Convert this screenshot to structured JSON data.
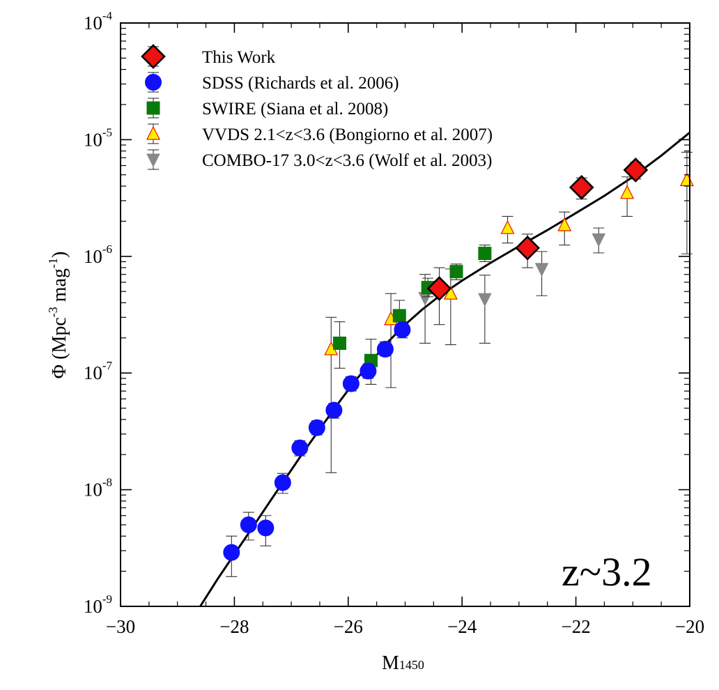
{
  "chart_data": {
    "type": "scatter",
    "xlabel": "M",
    "xlabel_sub": "1450",
    "ylabel": "Φ (Mpc",
    "ylabel_sup1": "-3",
    "ylabel_mid": " mag",
    "ylabel_sup2": "-1",
    "ylabel_end": ")",
    "xlim": [
      -30,
      -20
    ],
    "ylim": [
      1e-09,
      0.0001
    ],
    "yscale": "log",
    "x_ticks": [
      -30,
      -28,
      -26,
      -24,
      -22,
      -20
    ],
    "x_tick_labels": [
      "−30",
      "−28",
      "−26",
      "−24",
      "−22",
      "−20"
    ],
    "y_ticks": [
      {
        "value": 0.0001,
        "base": "10",
        "exp": "-4"
      },
      {
        "value": 1e-05,
        "base": "10",
        "exp": "-5"
      },
      {
        "value": 1e-06,
        "base": "10",
        "exp": "-6"
      },
      {
        "value": 1e-07,
        "base": "10",
        "exp": "-7"
      },
      {
        "value": 1e-08,
        "base": "10",
        "exp": "-8"
      },
      {
        "value": 1e-09,
        "base": "10",
        "exp": "-9"
      }
    ],
    "annotation": "z~3.2",
    "legend_position": "top-left",
    "grid": false,
    "series": [
      {
        "name": "This Work",
        "marker": "diamond",
        "color": "#ee1111",
        "edge": "#000000",
        "points": [
          {
            "x": -24.4,
            "y": 5.3e-07,
            "lo": 2.6e-07,
            "hi": 8e-07
          },
          {
            "x": -22.85,
            "y": 1.18e-06,
            "lo": 8e-07,
            "hi": 1.55e-06
          },
          {
            "x": -21.9,
            "y": 3.9e-06,
            "lo": 3.1e-06,
            "hi": 4.7e-06
          },
          {
            "x": -20.95,
            "y": 5.5e-06,
            "lo": 4.6e-06,
            "hi": 6.4e-06
          }
        ]
      },
      {
        "name": "SDSS (Richards et al. 2006)",
        "marker": "circle",
        "color": "#1010ff",
        "edge": "#1010ff",
        "points": [
          {
            "x": -28.05,
            "y": 2.9e-09,
            "lo": 1.8e-09,
            "hi": 4e-09
          },
          {
            "x": -27.75,
            "y": 5e-09,
            "lo": 3.7e-09,
            "hi": 6.4e-09
          },
          {
            "x": -27.45,
            "y": 4.7e-09,
            "lo": 3.3e-09,
            "hi": 6e-09
          },
          {
            "x": -27.15,
            "y": 1.15e-08,
            "lo": 9.3e-09,
            "hi": 1.38e-08
          },
          {
            "x": -26.85,
            "y": 2.28e-08,
            "lo": 1.95e-08,
            "hi": 2.63e-08
          },
          {
            "x": -26.55,
            "y": 3.4e-08,
            "lo": 2.95e-08,
            "hi": 3.9e-08
          },
          {
            "x": -26.25,
            "y": 4.8e-08,
            "lo": 4.1e-08,
            "hi": 5.5e-08
          },
          {
            "x": -25.95,
            "y": 8.1e-08,
            "lo": 7e-08,
            "hi": 9.3e-08
          },
          {
            "x": -25.65,
            "y": 1.04e-07,
            "lo": 9e-08,
            "hi": 1.2e-07
          },
          {
            "x": -25.35,
            "y": 1.6e-07,
            "lo": 1.4e-07,
            "hi": 1.85e-07
          },
          {
            "x": -25.05,
            "y": 2.35e-07,
            "lo": 2e-07,
            "hi": 2.75e-07
          }
        ]
      },
      {
        "name": "SWIRE (Siana et al. 2008)",
        "marker": "square",
        "color": "#0a7a0a",
        "edge": "#0a7a0a",
        "points": [
          {
            "x": -26.15,
            "y": 1.8e-07,
            "lo": 1.1e-07,
            "hi": 2.75e-07
          },
          {
            "x": -25.6,
            "y": 1.28e-07,
            "lo": 8e-08,
            "hi": 1.95e-07
          },
          {
            "x": -25.1,
            "y": 3.1e-07,
            "lo": 2.2e-07,
            "hi": 4.2e-07
          },
          {
            "x": -24.6,
            "y": 5.4e-07,
            "lo": 4.5e-07,
            "hi": 6.5e-07
          },
          {
            "x": -24.1,
            "y": 7.4e-07,
            "lo": 6.3e-07,
            "hi": 8.6e-07
          },
          {
            "x": -23.6,
            "y": 1.06e-06,
            "lo": 9e-07,
            "hi": 1.25e-06
          }
        ]
      },
      {
        "name": "VVDS 2.1<z<3.6 (Bongiorno et al. 2007)",
        "marker": "triangle-up",
        "color": "#ffee00",
        "edge": "#ee2200",
        "points": [
          {
            "x": -26.3,
            "y": 1.6e-07,
            "lo": 1.4e-08,
            "hi": 3e-07
          },
          {
            "x": -25.25,
            "y": 2.9e-07,
            "lo": 7.5e-08,
            "hi": 4.8e-07
          },
          {
            "x": -24.2,
            "y": 4.8e-07,
            "lo": 1.75e-07,
            "hi": 7.8e-07
          },
          {
            "x": -23.2,
            "y": 1.75e-06,
            "lo": 1.3e-06,
            "hi": 2.2e-06
          },
          {
            "x": -22.2,
            "y": 1.85e-06,
            "lo": 1.25e-06,
            "hi": 2.4e-06
          },
          {
            "x": -21.1,
            "y": 3.5e-06,
            "lo": 2.2e-06,
            "hi": 4.8e-06
          },
          {
            "x": -20.05,
            "y": 4.5e-06,
            "lo": 1.05e-06,
            "hi": 7.8e-06
          }
        ]
      },
      {
        "name": "COMBO-17 3.0<z<3.6 (Wolf et al. 2003)",
        "marker": "triangle-down",
        "color": "#888888",
        "edge": "#888888",
        "points": [
          {
            "x": -24.65,
            "y": 4.4e-07,
            "lo": 1.8e-07,
            "hi": 7e-07
          },
          {
            "x": -23.6,
            "y": 4.3e-07,
            "lo": 1.8e-07,
            "hi": 6.9e-07
          },
          {
            "x": -22.6,
            "y": 7.8e-07,
            "lo": 4.6e-07,
            "hi": 1.1e-06
          },
          {
            "x": -21.6,
            "y": 1.4e-06,
            "lo": 1.07e-06,
            "hi": 1.75e-06
          }
        ]
      }
    ],
    "fit_line": {
      "color": "#000000",
      "x": [
        -28.6,
        -28.3,
        -28.0,
        -27.7,
        -27.4,
        -27.1,
        -26.8,
        -26.5,
        -26.2,
        -25.9,
        -25.6,
        -25.3,
        -25.0,
        -24.7,
        -24.4,
        -24.0,
        -23.5,
        -23.0,
        -22.5,
        -22.0,
        -21.5,
        -21.0,
        -20.5,
        -20.0
      ],
      "y": [
        1e-09,
        1.7e-09,
        2.8e-09,
        4.6e-09,
        7.6e-09,
        1.25e-08,
        2.05e-08,
        3.3e-08,
        5.3e-08,
        8.3e-08,
        1.25e-07,
        1.85e-07,
        2.6e-07,
        3.5e-07,
        4.55e-07,
        6.2e-07,
        8.8e-07,
        1.22e-06,
        1.68e-06,
        2.35e-06,
        3.3e-06,
        4.8e-06,
        7.3e-06,
        1.15e-05
      ]
    }
  }
}
